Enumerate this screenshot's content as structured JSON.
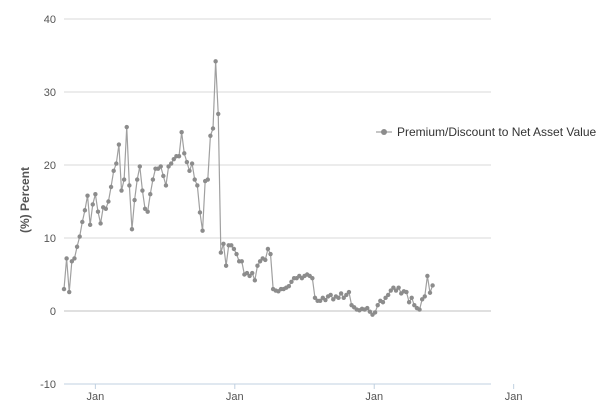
{
  "chart_data": {
    "type": "line",
    "title": "",
    "xlabel": "",
    "ylabel": "(%) Percent",
    "ylim": [
      -10,
      40
    ],
    "yticks": [
      -10,
      0,
      10,
      20,
      30,
      40
    ],
    "xticks": [
      "Jan",
      "Jan",
      "Jan",
      "Jan"
    ],
    "xlim": [
      0,
      49
    ],
    "xtick_positions": [
      3.6,
      19.6,
      35.6,
      51.6
    ],
    "grid": true,
    "legend": "right",
    "series": [
      {
        "name": "Premium/Discount to Net Asset Value",
        "color": "#8c8c8c",
        "points": [
          [
            0.0,
            3.0
          ],
          [
            0.3,
            7.2
          ],
          [
            0.6,
            2.6
          ],
          [
            0.9,
            6.8
          ],
          [
            1.2,
            7.2
          ],
          [
            1.5,
            8.8
          ],
          [
            1.8,
            10.2
          ],
          [
            2.1,
            12.2
          ],
          [
            2.4,
            13.8
          ],
          [
            2.7,
            15.8
          ],
          [
            3.0,
            11.8
          ],
          [
            3.3,
            14.6
          ],
          [
            3.6,
            16.0
          ],
          [
            3.9,
            13.6
          ],
          [
            4.2,
            12.0
          ],
          [
            4.5,
            14.2
          ],
          [
            4.8,
            14.0
          ],
          [
            5.1,
            15.0
          ],
          [
            5.4,
            17.0
          ],
          [
            5.7,
            19.2
          ],
          [
            6.0,
            20.2
          ],
          [
            6.3,
            22.8
          ],
          [
            6.6,
            16.5
          ],
          [
            6.9,
            18.0
          ],
          [
            7.2,
            25.2
          ],
          [
            7.5,
            17.2
          ],
          [
            7.8,
            11.2
          ],
          [
            8.1,
            15.2
          ],
          [
            8.4,
            18.0
          ],
          [
            8.7,
            19.8
          ],
          [
            9.0,
            16.5
          ],
          [
            9.3,
            14.0
          ],
          [
            9.6,
            13.6
          ],
          [
            9.9,
            16.0
          ],
          [
            10.2,
            18.0
          ],
          [
            10.5,
            19.5
          ],
          [
            10.8,
            19.5
          ],
          [
            11.1,
            19.8
          ],
          [
            11.4,
            18.5
          ],
          [
            11.7,
            17.2
          ],
          [
            12.0,
            19.8
          ],
          [
            12.3,
            20.2
          ],
          [
            12.6,
            20.8
          ],
          [
            12.9,
            21.2
          ],
          [
            13.2,
            21.2
          ],
          [
            13.5,
            24.5
          ],
          [
            13.8,
            21.6
          ],
          [
            14.1,
            20.4
          ],
          [
            14.4,
            19.2
          ],
          [
            14.7,
            20.2
          ],
          [
            15.0,
            18.0
          ],
          [
            15.3,
            17.2
          ],
          [
            15.6,
            13.5
          ],
          [
            15.9,
            11.0
          ],
          [
            16.2,
            17.8
          ],
          [
            16.5,
            18.0
          ],
          [
            16.8,
            24.0
          ],
          [
            17.1,
            25.0
          ],
          [
            17.4,
            34.2
          ],
          [
            17.7,
            27.0
          ],
          [
            18.0,
            8.0
          ],
          [
            18.3,
            9.2
          ],
          [
            18.6,
            6.2
          ],
          [
            18.9,
            9.0
          ],
          [
            19.2,
            9.0
          ],
          [
            19.5,
            8.5
          ],
          [
            19.8,
            7.8
          ],
          [
            20.1,
            6.8
          ],
          [
            20.4,
            6.8
          ],
          [
            20.7,
            5.0
          ],
          [
            21.0,
            5.2
          ],
          [
            21.3,
            4.8
          ],
          [
            21.6,
            5.2
          ],
          [
            21.9,
            4.2
          ],
          [
            22.2,
            6.2
          ],
          [
            22.5,
            6.8
          ],
          [
            22.8,
            7.2
          ],
          [
            23.1,
            7.0
          ],
          [
            23.4,
            8.5
          ],
          [
            23.7,
            7.8
          ],
          [
            24.0,
            3.0
          ],
          [
            24.3,
            2.8
          ],
          [
            24.6,
            2.7
          ],
          [
            24.9,
            3.0
          ],
          [
            25.2,
            3.0
          ],
          [
            25.5,
            3.2
          ],
          [
            25.8,
            3.4
          ],
          [
            26.1,
            4.0
          ],
          [
            26.4,
            4.5
          ],
          [
            26.7,
            4.5
          ],
          [
            27.0,
            4.8
          ],
          [
            27.3,
            4.5
          ],
          [
            27.6,
            4.8
          ],
          [
            27.9,
            5.0
          ],
          [
            28.2,
            4.8
          ],
          [
            28.5,
            4.5
          ],
          [
            28.8,
            1.8
          ],
          [
            29.1,
            1.4
          ],
          [
            29.4,
            1.4
          ],
          [
            29.7,
            1.8
          ],
          [
            30.0,
            1.5
          ],
          [
            30.3,
            2.0
          ],
          [
            30.6,
            2.2
          ],
          [
            30.9,
            1.6
          ],
          [
            31.2,
            2.0
          ],
          [
            31.5,
            1.8
          ],
          [
            31.8,
            2.4
          ],
          [
            32.1,
            1.8
          ],
          [
            32.4,
            2.2
          ],
          [
            32.7,
            2.6
          ],
          [
            33.0,
            0.8
          ],
          [
            33.3,
            0.5
          ],
          [
            33.6,
            0.2
          ],
          [
            33.9,
            0.1
          ],
          [
            34.2,
            0.3
          ],
          [
            34.5,
            0.2
          ],
          [
            34.8,
            0.4
          ],
          [
            35.1,
            -0.1
          ],
          [
            35.4,
            -0.5
          ],
          [
            35.7,
            -0.2
          ],
          [
            36.0,
            0.8
          ],
          [
            36.3,
            1.4
          ],
          [
            36.6,
            1.2
          ],
          [
            36.9,
            1.8
          ],
          [
            37.2,
            2.2
          ],
          [
            37.5,
            2.8
          ],
          [
            37.8,
            3.2
          ],
          [
            38.1,
            2.8
          ],
          [
            38.4,
            3.2
          ],
          [
            38.7,
            2.4
          ],
          [
            39.0,
            2.7
          ],
          [
            39.3,
            2.6
          ],
          [
            39.6,
            1.2
          ],
          [
            39.9,
            1.8
          ],
          [
            40.2,
            0.8
          ],
          [
            40.5,
            0.4
          ],
          [
            40.8,
            0.2
          ],
          [
            41.1,
            1.6
          ],
          [
            41.4,
            2.0
          ],
          [
            41.7,
            4.8
          ],
          [
            42.0,
            2.5
          ],
          [
            42.3,
            3.5
          ]
        ]
      }
    ]
  }
}
